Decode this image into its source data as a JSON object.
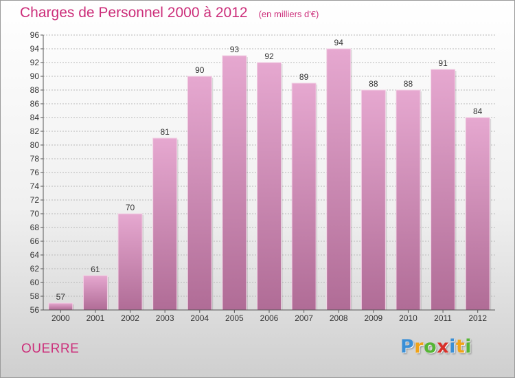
{
  "title": "Charges de Personnel 2000 à 2012",
  "unit_note": "(en milliers d'€)",
  "commune": "OUERRE",
  "logo": {
    "letters": [
      "P",
      "r",
      "o",
      "x",
      "i",
      "t",
      "i"
    ],
    "colors": [
      "#3a8fd6",
      "#f0a318",
      "#55b535",
      "#d8302a",
      "#3a8fd6",
      "#f0a318",
      "#55b535"
    ]
  },
  "colors": {
    "bar_top": "#e6a8d0",
    "bar_bottom": "#b06c96",
    "grid": "#b8b8b8",
    "text": "#333333",
    "accent": "#cc2e7a"
  },
  "chart_data": {
    "type": "bar",
    "categories": [
      "2000",
      "2001",
      "2002",
      "2003",
      "2004",
      "2005",
      "2006",
      "2007",
      "2008",
      "2009",
      "2010",
      "2011",
      "2012"
    ],
    "values": [
      57,
      61,
      70,
      81,
      90,
      93,
      92,
      89,
      94,
      88,
      88,
      91,
      84
    ],
    "ylim": [
      56,
      96
    ],
    "yticks": [
      56,
      58,
      60,
      62,
      64,
      66,
      68,
      70,
      72,
      74,
      76,
      78,
      80,
      82,
      84,
      86,
      88,
      90,
      92,
      94,
      96
    ],
    "grid": true,
    "data_labels": true
  }
}
